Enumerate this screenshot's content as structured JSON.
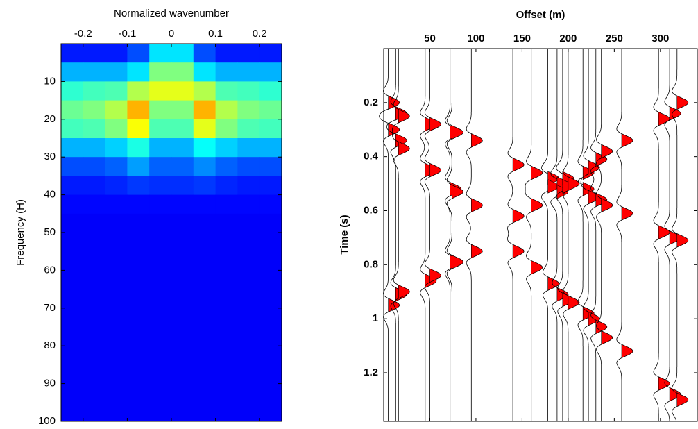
{
  "chart_data": [
    {
      "type": "heatmap",
      "title": "Normalized wavenumber",
      "y_label": "Frequency (H)",
      "colormap": "jet",
      "xlim": [
        -0.25,
        0.25
      ],
      "xticks": [
        -0.2,
        -0.1,
        0,
        0.1,
        0.2
      ],
      "ylim": [
        0,
        100
      ],
      "yticks": [
        10,
        20,
        30,
        40,
        50,
        60,
        70,
        80,
        90,
        100
      ],
      "y_reversed": true,
      "xbins": [
        -0.25,
        -0.2,
        -0.15,
        -0.1,
        -0.05,
        0,
        0.05,
        0.1,
        0.15,
        0.2,
        0.25
      ],
      "ybins": [
        0,
        5,
        10,
        15,
        20,
        25,
        30,
        35,
        40,
        45,
        50,
        55,
        60,
        65,
        70,
        75,
        80,
        85,
        90,
        95,
        100
      ],
      "z": [
        [
          0.15,
          0.15,
          0.15,
          0.2,
          0.35,
          0.35,
          0.2,
          0.15,
          0.15,
          0.15
        ],
        [
          0.3,
          0.3,
          0.3,
          0.35,
          0.5,
          0.5,
          0.35,
          0.3,
          0.3,
          0.3
        ],
        [
          0.42,
          0.44,
          0.45,
          0.55,
          0.6,
          0.6,
          0.55,
          0.45,
          0.44,
          0.42
        ],
        [
          0.48,
          0.5,
          0.55,
          0.7,
          0.5,
          0.5,
          0.7,
          0.55,
          0.5,
          0.48
        ],
        [
          0.44,
          0.45,
          0.5,
          0.62,
          0.45,
          0.45,
          0.6,
          0.5,
          0.45,
          0.44
        ],
        [
          0.3,
          0.3,
          0.33,
          0.4,
          0.3,
          0.3,
          0.38,
          0.33,
          0.3,
          0.3
        ],
        [
          0.2,
          0.2,
          0.22,
          0.28,
          0.22,
          0.22,
          0.26,
          0.22,
          0.2,
          0.2
        ],
        [
          0.15,
          0.15,
          0.16,
          0.18,
          0.17,
          0.17,
          0.18,
          0.16,
          0.15,
          0.15
        ],
        [
          0.13,
          0.13,
          0.13,
          0.13,
          0.13,
          0.13,
          0.13,
          0.13,
          0.13,
          0.13
        ],
        [
          0.12,
          0.12,
          0.12,
          0.12,
          0.12,
          0.12,
          0.12,
          0.12,
          0.12,
          0.12
        ],
        [
          0.12,
          0.12,
          0.12,
          0.12,
          0.12,
          0.12,
          0.12,
          0.12,
          0.12,
          0.12
        ],
        [
          0.12,
          0.12,
          0.12,
          0.12,
          0.12,
          0.12,
          0.12,
          0.12,
          0.12,
          0.12
        ],
        [
          0.12,
          0.12,
          0.12,
          0.12,
          0.12,
          0.12,
          0.12,
          0.12,
          0.12,
          0.12
        ],
        [
          0.12,
          0.12,
          0.12,
          0.12,
          0.12,
          0.12,
          0.12,
          0.12,
          0.12,
          0.12
        ],
        [
          0.12,
          0.12,
          0.12,
          0.12,
          0.12,
          0.12,
          0.12,
          0.12,
          0.12,
          0.12
        ],
        [
          0.12,
          0.12,
          0.12,
          0.12,
          0.12,
          0.12,
          0.12,
          0.12,
          0.12,
          0.12
        ],
        [
          0.12,
          0.12,
          0.12,
          0.12,
          0.12,
          0.12,
          0.12,
          0.12,
          0.12,
          0.12
        ],
        [
          0.12,
          0.12,
          0.12,
          0.12,
          0.12,
          0.12,
          0.12,
          0.12,
          0.12,
          0.12
        ],
        [
          0.12,
          0.12,
          0.12,
          0.12,
          0.12,
          0.12,
          0.12,
          0.12,
          0.12,
          0.12
        ],
        [
          0.12,
          0.12,
          0.12,
          0.12,
          0.12,
          0.12,
          0.12,
          0.12,
          0.12,
          0.12
        ]
      ]
    },
    {
      "type": "wiggle",
      "title": "Offset (m)",
      "y_label": "Time (s)",
      "color": "#ff0000",
      "xlim": [
        0,
        340
      ],
      "xticks": [
        50,
        100,
        150,
        200,
        250,
        300
      ],
      "ylim": [
        0,
        1.38
      ],
      "yticks": [
        0.2,
        0.4,
        0.6,
        0.8,
        1,
        1.2
      ],
      "y_reversed": true,
      "traces": [
        {
          "offset": 5,
          "events": [
            0.2,
            0.3,
            0.95
          ]
        },
        {
          "offset": 13,
          "events": [
            0.24,
            0.34,
            0.91
          ]
        },
        {
          "offset": 16,
          "events": [
            0.25,
            0.37,
            0.9
          ]
        },
        {
          "offset": 45,
          "events": [
            0.28,
            0.45,
            0.86
          ]
        },
        {
          "offset": 50,
          "events": [
            0.28,
            0.45,
            0.84
          ]
        },
        {
          "offset": 72,
          "events": [
            0.31,
            0.52,
            0.79
          ]
        },
        {
          "offset": 74,
          "events": [
            0.31,
            0.53,
            0.79
          ]
        },
        {
          "offset": 95,
          "events": [
            0.34,
            0.58,
            0.75
          ]
        },
        {
          "offset": 140,
          "events": [
            0.43,
            0.62,
            0.75
          ]
        },
        {
          "offset": 160,
          "events": [
            0.46,
            0.58,
            0.81
          ]
        },
        {
          "offset": 178,
          "events": [
            0.48,
            0.51,
            0.87
          ]
        },
        {
          "offset": 188,
          "events": [
            0.5,
            0.53,
            0.91
          ]
        },
        {
          "offset": 194,
          "events": [
            0.48,
            0.51,
            0.93
          ]
        },
        {
          "offset": 200,
          "events": [
            0.5,
            0.94
          ]
        },
        {
          "offset": 216,
          "events": [
            0.46,
            0.52,
            0.98
          ]
        },
        {
          "offset": 222,
          "events": [
            0.44,
            0.55,
            1
          ]
        },
        {
          "offset": 230,
          "events": [
            0.41,
            0.56,
            1.03
          ]
        },
        {
          "offset": 236,
          "events": [
            0.38,
            0.58,
            1.07
          ]
        },
        {
          "offset": 258,
          "events": [
            0.34,
            0.61,
            1.12
          ]
        },
        {
          "offset": 298,
          "events": [
            0.26,
            0.68,
            1.24
          ]
        },
        {
          "offset": 310,
          "events": [
            0.24,
            0.7,
            1.28
          ]
        },
        {
          "offset": 318,
          "events": [
            0.2,
            0.71,
            1.3
          ]
        }
      ]
    }
  ]
}
